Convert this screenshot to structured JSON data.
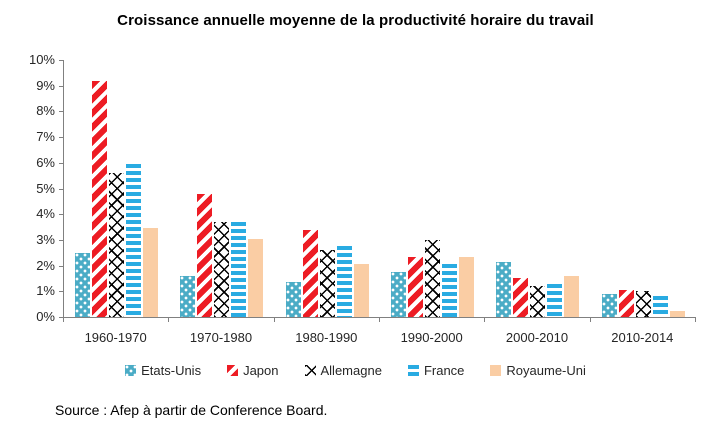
{
  "chart_data": {
    "type": "bar",
    "title": "Croissance annuelle moyenne de la productivité horaire du travail",
    "categories": [
      "1960-1970",
      "1970-1980",
      "1980-1990",
      "1990-2000",
      "2000-2010",
      "2010-2014"
    ],
    "series": [
      {
        "name": "Etats-Unis",
        "pattern": "dots",
        "color": "#4BACC6",
        "values": [
          2.5,
          1.6,
          1.35,
          1.75,
          2.15,
          0.9
        ]
      },
      {
        "name": "Japon",
        "pattern": "diagonal-stripes",
        "color": "#ED1C24",
        "values": [
          9.2,
          4.8,
          3.4,
          2.35,
          1.5,
          1.05
        ]
      },
      {
        "name": "Allemagne",
        "pattern": "crosshatch",
        "color": "#000000",
        "values": [
          5.6,
          3.7,
          2.6,
          3.0,
          1.2,
          1.0
        ]
      },
      {
        "name": "France",
        "pattern": "horizontal-stripes",
        "color": "#29ABE2",
        "values": [
          5.95,
          3.7,
          2.75,
          2.05,
          1.3,
          0.8
        ]
      },
      {
        "name": "Royaume-Uni",
        "pattern": "solid",
        "color": "#FACDA4",
        "values": [
          3.45,
          3.05,
          2.05,
          2.35,
          1.6,
          0.25
        ]
      }
    ],
    "ylim": [
      0,
      10
    ],
    "ytick_step": 1,
    "ytick_suffix": "%",
    "legend_position": "bottom",
    "grid": false,
    "axis_color": "#808080"
  },
  "source": {
    "text": "Source : Afep à partir de Conference Board."
  }
}
